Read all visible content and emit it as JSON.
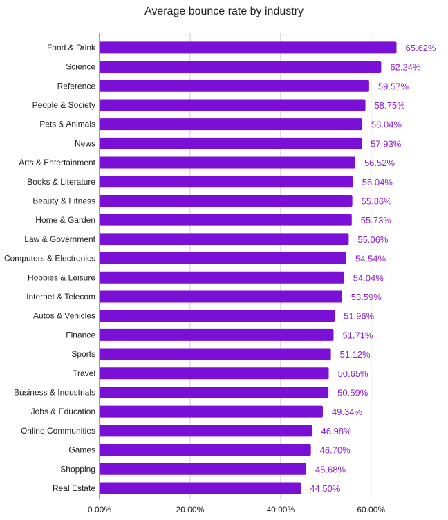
{
  "chart_data": {
    "type": "bar",
    "orientation": "horizontal",
    "title": "Average bounce rate by industry",
    "xlabel": "",
    "ylabel": "",
    "categories": [
      "Food & Drink",
      "Science",
      "Reference",
      "People & Society",
      "Pets & Animals",
      "News",
      "Arts & Entertainment",
      "Books & Literature",
      "Beauty & Fitness",
      "Home & Garden",
      "Law & Government",
      "Computers & Electronics",
      "Hobbies & Leisure",
      "Internet & Telecom",
      "Autos & Vehicles",
      "Finance",
      "Sports",
      "Travel",
      "Business & Industrials",
      "Jobs & Education",
      "Online Communities",
      "Games",
      "Shopping",
      "Real Estate"
    ],
    "values": [
      65.62,
      62.24,
      59.57,
      58.75,
      58.04,
      57.93,
      56.52,
      56.04,
      55.86,
      55.73,
      55.06,
      54.54,
      54.04,
      53.59,
      51.96,
      51.71,
      51.12,
      50.65,
      50.59,
      49.34,
      46.98,
      46.7,
      45.68,
      44.5
    ],
    "value_labels": [
      "65.62%",
      "62.24%",
      "59.57%",
      "58.75%",
      "58.04%",
      "57.93%",
      "56.52%",
      "56.04%",
      "55.86%",
      "55.73%",
      "55.06%",
      "54.54%",
      "54.04%",
      "53.59%",
      "51.96%",
      "51.71%",
      "51.12%",
      "50.65%",
      "50.59%",
      "49.34%",
      "46.98%",
      "46.70%",
      "45.68%",
      "44.50%"
    ],
    "xticks": [
      0,
      20,
      40,
      60
    ],
    "xtick_labels": [
      "0.00%",
      "20.00%",
      "40.00%",
      "60.00%"
    ],
    "xlim": [
      0,
      77
    ],
    "grid": true,
    "legend": "none",
    "bar_color": "#7a0fd6",
    "label_color": "#8a1fd0"
  }
}
